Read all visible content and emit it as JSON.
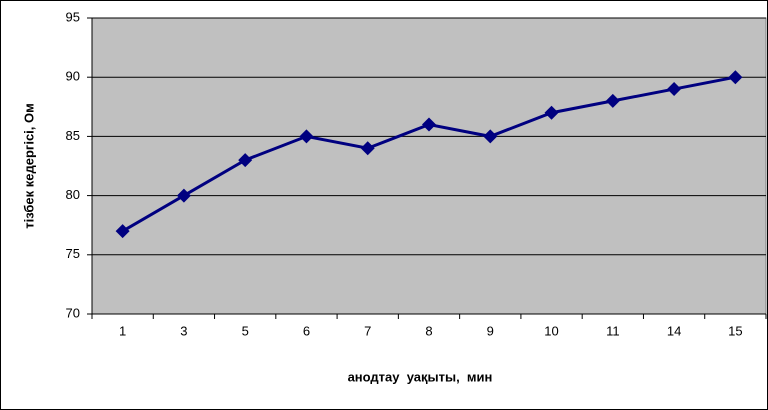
{
  "chart_data": {
    "type": "line",
    "x_label": "анодтау  уақыты,  мин",
    "y_label": "тізбек кедергісі, Ом",
    "categories": [
      "1",
      "3",
      "5",
      "6",
      "7",
      "8",
      "9",
      "10",
      "11",
      "14",
      "15"
    ],
    "series": [
      {
        "color": "#000080",
        "values": [
          77,
          80,
          83,
          85,
          84,
          86,
          85,
          87,
          88,
          89,
          90
        ]
      }
    ],
    "ylim": [
      70,
      95
    ],
    "yticks": [
      70,
      75,
      80,
      85,
      90,
      95
    ],
    "grid": true
  }
}
